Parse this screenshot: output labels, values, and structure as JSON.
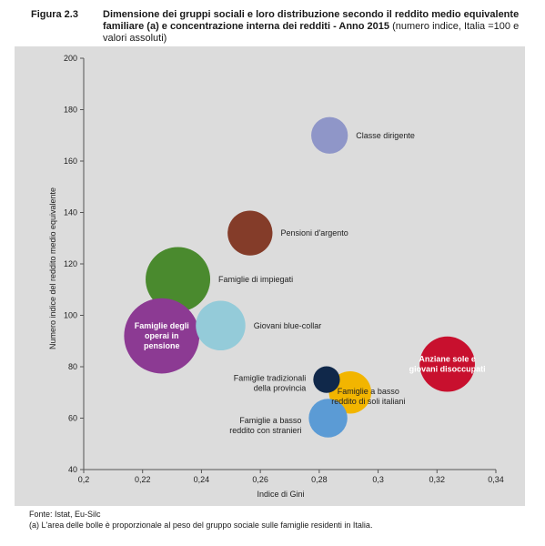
{
  "header": {
    "figure_label": "Figura 2.3",
    "title_bold": "Dimensione dei gruppi sociali e loro distribuzione secondo il reddito medio equivalente familiare (a) e concentrazione interna dei redditi - Anno 2015",
    "title_normal": " (numero indice, Italia =100 e valori assoluti)"
  },
  "footer": {
    "source": "Fonte: Istat, Eu-Silc",
    "note": "(a) L'area delle bolle è proporzionale al peso del gruppo sociale sulle famiglie residenti in Italia."
  },
  "chart_data": {
    "type": "scatter",
    "xlabel": "Indice di Gini",
    "ylabel": "Numero indice del reddito medio equivalente",
    "xlim": [
      0.2,
      0.34
    ],
    "ylim": [
      40,
      200
    ],
    "x_ticks": [
      "0,2",
      "0,22",
      "0,24",
      "0,26",
      "0,28",
      "0,3",
      "0,32",
      "0,34"
    ],
    "y_ticks": [
      "40",
      "60",
      "80",
      "100",
      "120",
      "140",
      "160",
      "180",
      "200"
    ],
    "grid": false,
    "bubble_size": "area",
    "series": [
      {
        "name": "Classe dirigente",
        "x": 0.2835,
        "y": 170,
        "size": 1.8,
        "color": "#8f96c8"
      },
      {
        "name": "Pensioni d'argento",
        "x": 0.2565,
        "y": 132,
        "size": 2.7,
        "color": "#843c29"
      },
      {
        "name": "Famiglie di impiegati",
        "x": 0.232,
        "y": 114,
        "size": 5.6,
        "color": "#4a8a2e"
      },
      {
        "name": "Famiglie degli operai in pensione",
        "x": 0.2265,
        "y": 92,
        "size": 7.6,
        "color": "#8c3a93"
      },
      {
        "name": "Giovani blue-collar",
        "x": 0.2465,
        "y": 96,
        "size": 3.3,
        "color": "#94cbd9"
      },
      {
        "name": "Anziane sole e giovani disoccupati",
        "x": 0.3235,
        "y": 81,
        "size": 4.1,
        "color": "#c8102e"
      },
      {
        "name": "Famiglie a basso reddito di soli italiani",
        "x": 0.2905,
        "y": 70,
        "size": 2.4,
        "color": "#f2b500"
      },
      {
        "name": "Famiglie a basso reddito con stranieri",
        "x": 0.283,
        "y": 60,
        "size": 2.0,
        "color": "#5b9bd5"
      },
      {
        "name": "Famiglie tradizionali della provincia",
        "x": 0.2825,
        "y": 75,
        "size": 0.95,
        "color": "#10284a"
      }
    ]
  }
}
